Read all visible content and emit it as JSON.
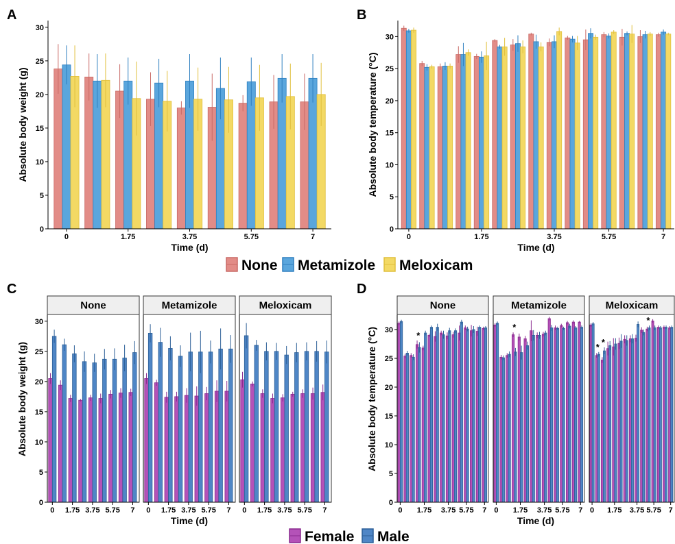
{
  "legend_top": [
    {
      "label": "None",
      "fill": "#e28c87",
      "stroke": "#c96a66"
    },
    {
      "label": "Metamizole",
      "fill": "#5aa6dd",
      "stroke": "#2e7fbf"
    },
    {
      "label": "Meloxicam",
      "fill": "#f3d964",
      "stroke": "#e0bf3c"
    }
  ],
  "legend_bottom": [
    {
      "label": "Female",
      "fill": "#b452b8",
      "stroke": "#8a2a8f"
    },
    {
      "label": "Male",
      "fill": "#4f86c6",
      "stroke": "#2c5f97"
    }
  ],
  "chart_data": [
    {
      "panel": "A",
      "type": "bar",
      "xlabel": "Time (d)",
      "ylabel": "Absolute body weight (g)",
      "ylim": [
        0,
        31
      ],
      "yticks": [
        0,
        5,
        10,
        15,
        20,
        25,
        30
      ],
      "xtick_labels": [
        "0",
        "1.75",
        "3.75",
        "5.75",
        "7"
      ],
      "groups": 9,
      "series": [
        {
          "name": "None",
          "values": [
            23.8,
            22.6,
            20.5,
            19.3,
            18.0,
            18.1,
            18.7,
            18.9,
            18.9
          ],
          "err": [
            3.7,
            3.5,
            4.0,
            4.0,
            1.0,
            5.0,
            1.2,
            4.0,
            4.2
          ]
        },
        {
          "name": "Metamizole",
          "values": [
            24.4,
            22.0,
            22.0,
            21.7,
            22.0,
            20.9,
            21.9,
            22.4,
            22.4
          ],
          "err": [
            2.9,
            4.0,
            3.5,
            3.6,
            4.0,
            4.6,
            3.6,
            3.6,
            3.6
          ]
        },
        {
          "name": "Meloxicam",
          "values": [
            22.7,
            22.1,
            19.4,
            19.0,
            19.3,
            19.2,
            19.5,
            19.7,
            20.0
          ],
          "err": [
            4.6,
            4.0,
            5.5,
            4.5,
            4.7,
            4.9,
            4.9,
            4.9,
            4.7
          ]
        }
      ]
    },
    {
      "panel": "B",
      "type": "bar",
      "xlabel": "Time (d)",
      "ylabel": "Absolute body temperature (°C)",
      "ylim": [
        0,
        32.5
      ],
      "yticks": [
        0,
        5,
        10,
        15,
        20,
        25,
        30
      ],
      "xtick_labels": [
        "0",
        "1.75",
        "3.75",
        "5.75",
        "7"
      ],
      "groups": 15,
      "series": [
        {
          "name": "None",
          "values": [
            31.3,
            25.8,
            25.3,
            27.2,
            26.9,
            29.4,
            28.7,
            30.4,
            29.1,
            29.8,
            29.5,
            30.3,
            29.9,
            30.0,
            30.3
          ],
          "err": [
            0.4,
            0.4,
            0.5,
            1.3,
            0.4,
            0.2,
            0.9,
            0.2,
            0.6,
            0.3,
            1.6,
            0.4,
            1.3,
            1.0,
            0.3
          ]
        },
        {
          "name": "Metamizole",
          "values": [
            30.9,
            25.2,
            25.4,
            27.2,
            26.8,
            28.4,
            28.9,
            29.2,
            29.2,
            29.6,
            30.5,
            30.1,
            30.5,
            30.3,
            30.7
          ],
          "err": [
            0.3,
            0.5,
            0.6,
            1.8,
            0.9,
            0.3,
            1.3,
            1.1,
            1.0,
            0.5,
            0.8,
            0.4,
            0.3,
            0.6,
            0.4
          ]
        },
        {
          "name": "Meloxicam",
          "values": [
            31.0,
            25.3,
            25.4,
            27.5,
            27.0,
            28.4,
            28.4,
            28.4,
            30.8,
            29.0,
            29.9,
            30.7,
            30.4,
            30.4,
            30.4
          ],
          "err": [
            0.4,
            0.3,
            0.4,
            0.5,
            2.2,
            1.4,
            1.0,
            0.7,
            0.6,
            1.1,
            0.4,
            0.3,
            1.4,
            0.3,
            0.2
          ]
        }
      ]
    },
    {
      "panel": "C",
      "type": "bar",
      "xlabel": "Time (d)",
      "ylabel": "Absolute body weight (g)",
      "ylim": [
        0,
        31
      ],
      "yticks": [
        0,
        5,
        10,
        15,
        20,
        25,
        30
      ],
      "xtick_labels": [
        "0",
        "1.75",
        "3.75",
        "5.75",
        "7"
      ],
      "facets": [
        {
          "name": "None",
          "female": [
            20.5,
            19.4,
            17.2,
            16.9,
            17.3,
            17.2,
            17.9,
            18.1,
            18.2
          ],
          "female_err": [
            0.9,
            0.8,
            0.6,
            0.2,
            0.5,
            0.8,
            0.7,
            0.8,
            0.6
          ],
          "male": [
            27.5,
            26.1,
            24.6,
            23.3,
            23.1,
            23.7,
            23.7,
            23.9,
            24.8
          ],
          "male_err": [
            1.1,
            1.0,
            1.4,
            1.7,
            1.5,
            1.7,
            1.8,
            2.2,
            1.9
          ]
        },
        {
          "name": "Metamizole",
          "female": [
            20.5,
            19.8,
            17.4,
            17.5,
            17.7,
            17.6,
            18.0,
            18.4,
            18.4
          ],
          "female_err": [
            0.9,
            0.5,
            0.9,
            0.8,
            1.2,
            1.6,
            1.1,
            1.8,
            1.7
          ],
          "male": [
            28.0,
            26.5,
            25.5,
            24.2,
            24.9,
            24.9,
            24.9,
            25.4,
            25.4
          ],
          "male_err": [
            1.5,
            2.4,
            2.0,
            1.8,
            3.2,
            3.5,
            1.9,
            3.4,
            2.3
          ]
        },
        {
          "name": "Meloxicam",
          "female": [
            20.3,
            19.6,
            18.0,
            17.2,
            17.3,
            17.9,
            18.0,
            18.0,
            18.2
          ],
          "female_err": [
            1.3,
            0.4,
            0.7,
            0.8,
            0.6,
            0.4,
            0.7,
            1.0,
            1.3
          ],
          "male": [
            27.6,
            26.0,
            25.0,
            25.0,
            24.4,
            24.8,
            25.0,
            25.0,
            24.9
          ],
          "male_err": [
            2.1,
            0.9,
            1.5,
            1.4,
            1.5,
            1.6,
            1.5,
            1.7,
            1.9
          ]
        }
      ]
    },
    {
      "panel": "D",
      "type": "bar",
      "xlabel": "Time (d)",
      "ylabel": "Absolute body temperature (°C)",
      "ylim": [
        0,
        32.5
      ],
      "yticks": [
        0,
        5,
        10,
        15,
        20,
        25,
        30
      ],
      "xtick_labels": [
        "0",
        "1.75",
        "3.75",
        "5.75",
        "7"
      ],
      "facets": [
        {
          "name": "None",
          "female": [
            31.1,
            25.4,
            25.5,
            27.4,
            26.8,
            29.0,
            28.8,
            29.4,
            28.9,
            29.1,
            29.4,
            30.3,
            29.8,
            29.7,
            30.2
          ],
          "female_err": [
            0.3,
            0.4,
            0.4,
            0.7,
            0.4,
            0.3,
            0.9,
            0.4,
            0.6,
            0.5,
            1.3,
            0.4,
            1.0,
            0.8,
            0.3
          ],
          "male": [
            31.4,
            25.9,
            25.2,
            26.9,
            29.4,
            30.4,
            30.4,
            29.1,
            29.8,
            29.8,
            31.3,
            30.1,
            30.0,
            30.4,
            30.3
          ],
          "male_err": [
            0.3,
            0.4,
            0.5,
            0.9,
            0.4,
            0.3,
            0.6,
            0.7,
            0.5,
            0.4,
            0.4,
            0.4,
            0.6,
            0.3,
            0.3
          ],
          "stars": [
            3
          ]
        },
        {
          "name": "Metamizole",
          "female": [
            30.8,
            25.2,
            25.5,
            29.1,
            28.7,
            28.4,
            29.8,
            29.0,
            29.2,
            31.9,
            30.3,
            30.7,
            31.2,
            31.3,
            31.3
          ],
          "female_err": [
            0.3,
            0.4,
            0.4,
            0.4,
            0.6,
            0.5,
            1.8,
            0.5,
            0.4,
            0.3,
            0.4,
            0.3,
            0.3,
            0.3,
            0.2
          ],
          "male": [
            31.1,
            25.1,
            25.7,
            26.1,
            26.0,
            27.2,
            29.0,
            29.0,
            29.4,
            30.3,
            30.2,
            30.2,
            30.6,
            30.3,
            30.4
          ],
          "male_err": [
            0.3,
            0.4,
            0.5,
            0.7,
            1.2,
            0.7,
            0.9,
            0.6,
            0.4,
            0.5,
            0.3,
            0.3,
            0.4,
            0.3,
            0.3
          ],
          "stars": [
            3
          ]
        },
        {
          "name": "Meloxicam",
          "female": [
            30.8,
            25.5,
            24.7,
            26.7,
            27.0,
            27.6,
            28.3,
            28.4,
            28.5,
            29.9,
            30.1,
            31.5,
            30.4,
            30.4,
            30.3
          ],
          "female_err": [
            0.3,
            0.4,
            0.5,
            1.2,
            1.5,
            1.0,
            0.7,
            0.6,
            0.6,
            0.5,
            0.4,
            0.3,
            0.3,
            0.3,
            0.3
          ],
          "male": [
            31.0,
            25.7,
            26.3,
            27.2,
            27.5,
            28.0,
            28.1,
            28.4,
            30.9,
            29.5,
            30.3,
            30.3,
            30.3,
            30.4,
            30.4
          ],
          "male_err": [
            0.3,
            0.4,
            0.6,
            0.8,
            1.0,
            1.2,
            0.9,
            0.8,
            0.5,
            0.5,
            0.4,
            0.4,
            0.3,
            0.3,
            0.3
          ],
          "stars": [
            1,
            2,
            10
          ]
        }
      ]
    }
  ]
}
